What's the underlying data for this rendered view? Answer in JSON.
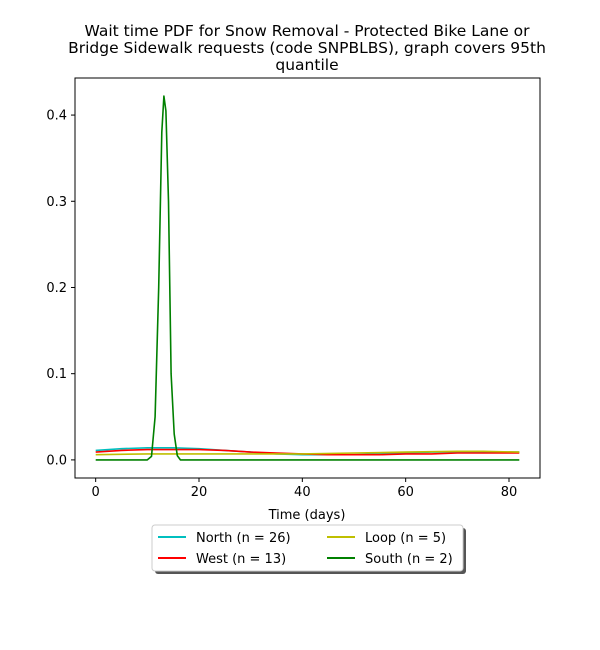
{
  "chart_data": {
    "type": "line",
    "title_lines": [
      "Wait time PDF for Snow Removal - Protected Bike Lane or",
      "Bridge Sidewalk  requests (code SNPBLBS), graph covers 95th",
      "quantile"
    ],
    "xlabel": "Time (days)",
    "ylabel": "",
    "xlim": [
      -4,
      86
    ],
    "ylim": [
      -0.021,
      0.443
    ],
    "xticks": [
      0,
      20,
      40,
      60,
      80
    ],
    "yticks": [
      0.0,
      0.1,
      0.2,
      0.3,
      0.4
    ],
    "ytick_labels": [
      "0.0",
      "0.1",
      "0.2",
      "0.3",
      "0.4"
    ],
    "grid": false,
    "legend_position": "below-center",
    "legend_columns": 2,
    "series": [
      {
        "name": "North (n = 26)",
        "color": "#00bfbf",
        "x": [
          0,
          5,
          10,
          15,
          20,
          25,
          30,
          35,
          40,
          45,
          50,
          55,
          60,
          65,
          70,
          75,
          82
        ],
        "y": [
          0.011,
          0.013,
          0.014,
          0.014,
          0.013,
          0.011,
          0.009,
          0.007,
          0.006,
          0.006,
          0.006,
          0.007,
          0.008,
          0.009,
          0.009,
          0.009,
          0.009
        ]
      },
      {
        "name": "West (n = 13)",
        "color": "#ff0000",
        "x": [
          0,
          5,
          10,
          15,
          20,
          25,
          30,
          35,
          40,
          45,
          50,
          55,
          60,
          65,
          70,
          75,
          82
        ],
        "y": [
          0.009,
          0.011,
          0.012,
          0.012,
          0.012,
          0.011,
          0.009,
          0.008,
          0.007,
          0.006,
          0.006,
          0.006,
          0.007,
          0.007,
          0.008,
          0.008,
          0.008
        ]
      },
      {
        "name": "Loop (n = 5)",
        "color": "#bfbf00",
        "x": [
          0,
          10,
          20,
          30,
          40,
          50,
          60,
          70,
          75,
          82
        ],
        "y": [
          0.006,
          0.007,
          0.007,
          0.007,
          0.007,
          0.008,
          0.009,
          0.01,
          0.01,
          0.009
        ]
      },
      {
        "name": "South (n = 2)",
        "color": "#008000",
        "x": [
          0,
          10,
          10.8,
          11.5,
          12.2,
          12.8,
          13.2,
          13.6,
          14.1,
          14.6,
          15.2,
          15.8,
          16.4,
          17,
          20,
          40,
          60,
          82
        ],
        "y": [
          0.0,
          0.0,
          0.004,
          0.05,
          0.2,
          0.38,
          0.422,
          0.405,
          0.3,
          0.1,
          0.03,
          0.005,
          0.0,
          0.0,
          0.0,
          0.0,
          0.0,
          0.0
        ]
      }
    ]
  }
}
